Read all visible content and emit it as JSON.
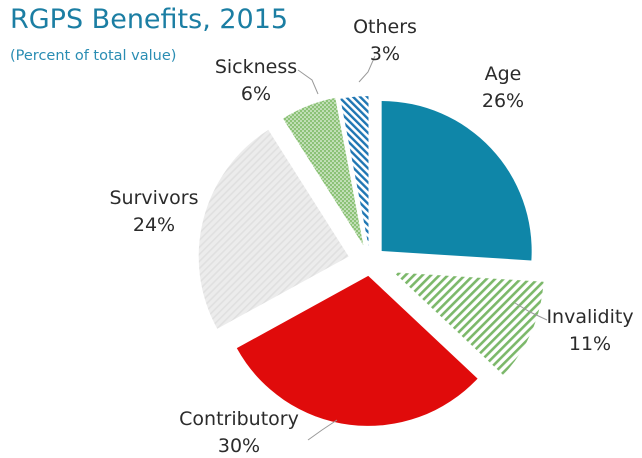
{
  "chart_data": {
    "type": "pie",
    "title": "RGPS Benefits, 2015",
    "subtitle": "(Percent of total value)",
    "slices": [
      {
        "name": "Age",
        "percent_label": "26%",
        "value": 26,
        "color": "#0f86a8",
        "pattern": "solid"
      },
      {
        "name": "Invalidity",
        "percent_label": "11%",
        "value": 11,
        "color": "#7cb86a",
        "pattern": "diagonal-hatch"
      },
      {
        "name": "Contributory",
        "percent_label": "30%",
        "value": 30,
        "color": "#e00b0b",
        "pattern": "solid"
      },
      {
        "name": "Survivors",
        "percent_label": "24%",
        "value": 24,
        "color": "#e6e6e6",
        "pattern": "light-hatch"
      },
      {
        "name": "Sickness",
        "percent_label": "6%",
        "value": 6,
        "color": "#74b65a",
        "pattern": "dotted"
      },
      {
        "name": "Others",
        "percent_label": "3%",
        "value": 3,
        "color": "#1f76b3",
        "pattern": "diagonal-hatch"
      }
    ]
  }
}
